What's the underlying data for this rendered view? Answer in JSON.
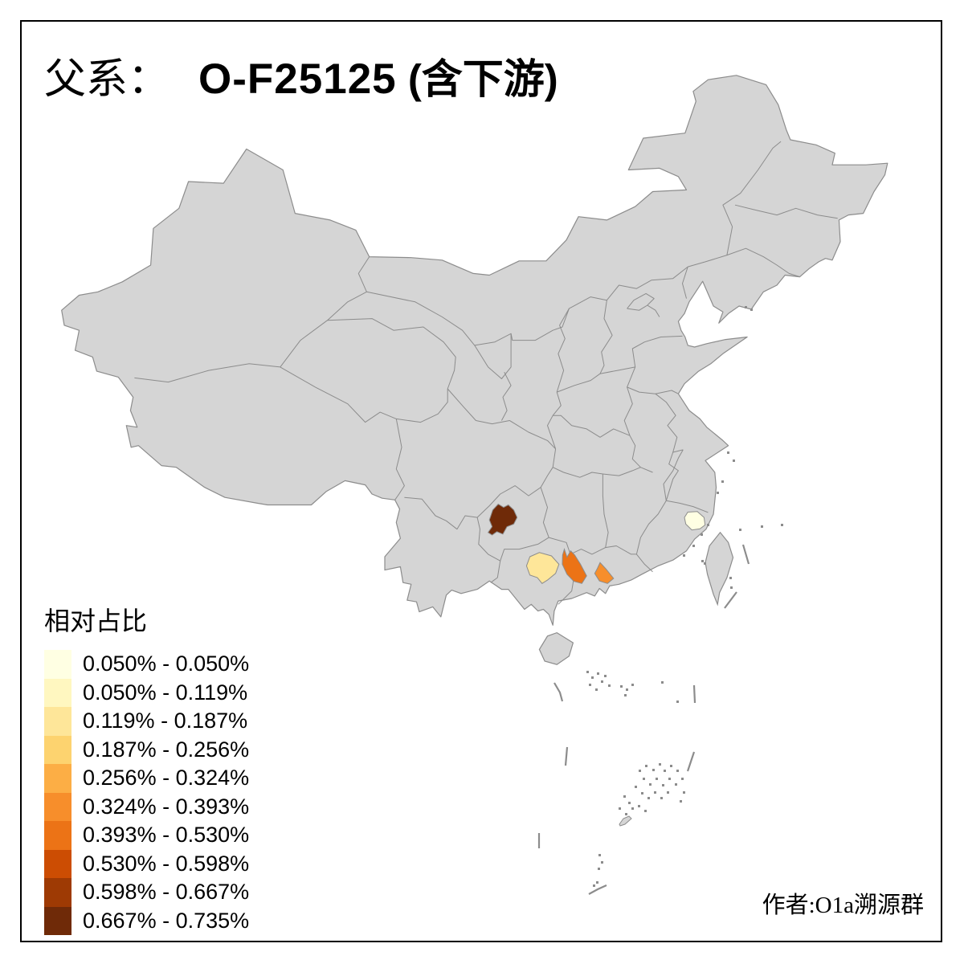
{
  "title": {
    "prefix": "父系：",
    "main": "O-F25125",
    "suffix": " (含下游)"
  },
  "legend": {
    "title": "相对占比",
    "entries": [
      {
        "label": "0.050% - 0.050%",
        "color": "#FFFFE3"
      },
      {
        "label": "0.050% - 0.119%",
        "color": "#FFF7C0"
      },
      {
        "label": "0.119% - 0.187%",
        "color": "#FEE699"
      },
      {
        "label": "0.187% - 0.256%",
        "color": "#FDD36F"
      },
      {
        "label": "0.256% - 0.324%",
        "color": "#FCAE45"
      },
      {
        "label": "0.324% - 0.393%",
        "color": "#F78E2B"
      },
      {
        "label": "0.393% - 0.530%",
        "color": "#EC7316"
      },
      {
        "label": "0.530% - 0.598%",
        "color": "#CC4D03"
      },
      {
        "label": "0.598% - 0.667%",
        "color": "#9E3A04"
      },
      {
        "label": "0.667% - 0.735%",
        "color": "#6F2A08"
      }
    ]
  },
  "attribution": {
    "text": "作者:O1a溯源群"
  },
  "map": {
    "land_color": "#D5D5D5",
    "border_color": "#8C8C8C",
    "sea_color": "#FFFFFF",
    "frame_color": "#000000",
    "highlighted_regions": [
      {
        "id": "dark-brown-region-southwest",
        "color": "#6F2A08",
        "legend_range": "0.667% - 0.735%"
      },
      {
        "id": "cream-region-south-west",
        "color": "#FEE699",
        "legend_range": "0.119% - 0.187%"
      },
      {
        "id": "orange-region-south-central",
        "color": "#EC7316",
        "legend_range": "0.393% - 0.530%"
      },
      {
        "id": "light-orange-region-south-east",
        "color": "#F78E2B",
        "legend_range": "0.324% - 0.393%"
      },
      {
        "id": "pale-yellow-region-east-coast",
        "color": "#FFFFE3",
        "legend_range": "0.050% - 0.050%"
      }
    ]
  }
}
